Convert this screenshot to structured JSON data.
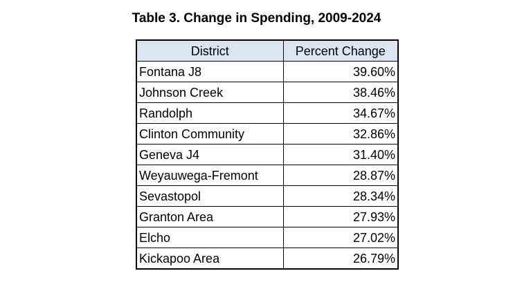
{
  "title": "Table 3. Change in Spending, 2009-2024",
  "table": {
    "headers": [
      "District",
      "Percent Change"
    ],
    "rows": [
      [
        "Fontana J8",
        "39.60%"
      ],
      [
        "Johnson Creek",
        "38.46%"
      ],
      [
        "Randolph",
        "34.67%"
      ],
      [
        "Clinton Community",
        "32.86%"
      ],
      [
        "Geneva J4",
        "31.40%"
      ],
      [
        "Weyauwega-Fremont",
        "28.87%"
      ],
      [
        "Sevastopol",
        "28.34%"
      ],
      [
        "Granton Area",
        "27.93%"
      ],
      [
        "Elcho",
        "27.02%"
      ],
      [
        "Kickapoo Area",
        "26.79%"
      ]
    ]
  },
  "colors": {
    "header_background": "#dbe5f1",
    "border": "#000000"
  }
}
